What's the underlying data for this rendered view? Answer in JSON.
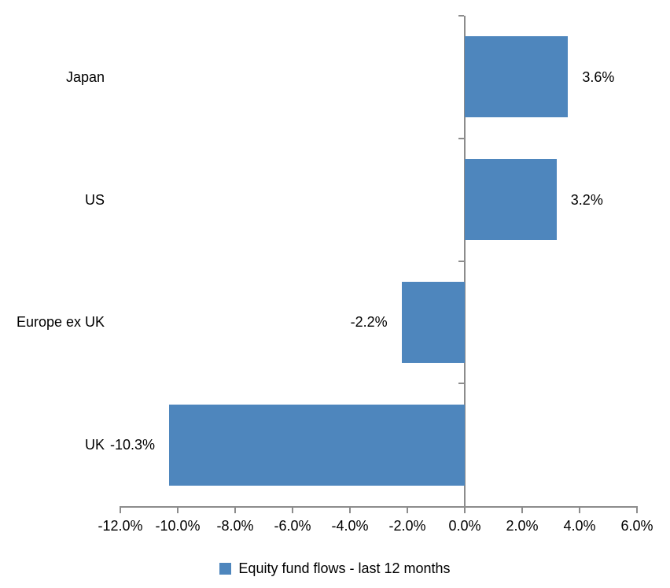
{
  "chart_data": {
    "type": "bar",
    "orientation": "horizontal",
    "categories": [
      "Japan",
      "US",
      "Europe ex UK",
      "UK"
    ],
    "values": [
      3.6,
      3.2,
      -2.2,
      -10.3
    ],
    "data_labels": [
      "3.6%",
      "3.2%",
      "-2.2%",
      "-10.3%"
    ],
    "series_name": "Equity fund flows - last 12 months",
    "x_axis": {
      "min": -12,
      "max": 6,
      "step": 2,
      "tick_labels": [
        "-12.0%",
        "-10.0%",
        "-8.0%",
        "-6.0%",
        "-4.0%",
        "-2.0%",
        "0.0%",
        "2.0%",
        "4.0%",
        "6.0%"
      ]
    },
    "grid": false,
    "legend_position": "bottom",
    "colors": {
      "bar": "#4E86BD",
      "axis": "#8C8C8C",
      "text": "#000000",
      "background": "#FFFFFF"
    }
  },
  "legend": {
    "label": "Equity fund flows - last 12 months"
  }
}
